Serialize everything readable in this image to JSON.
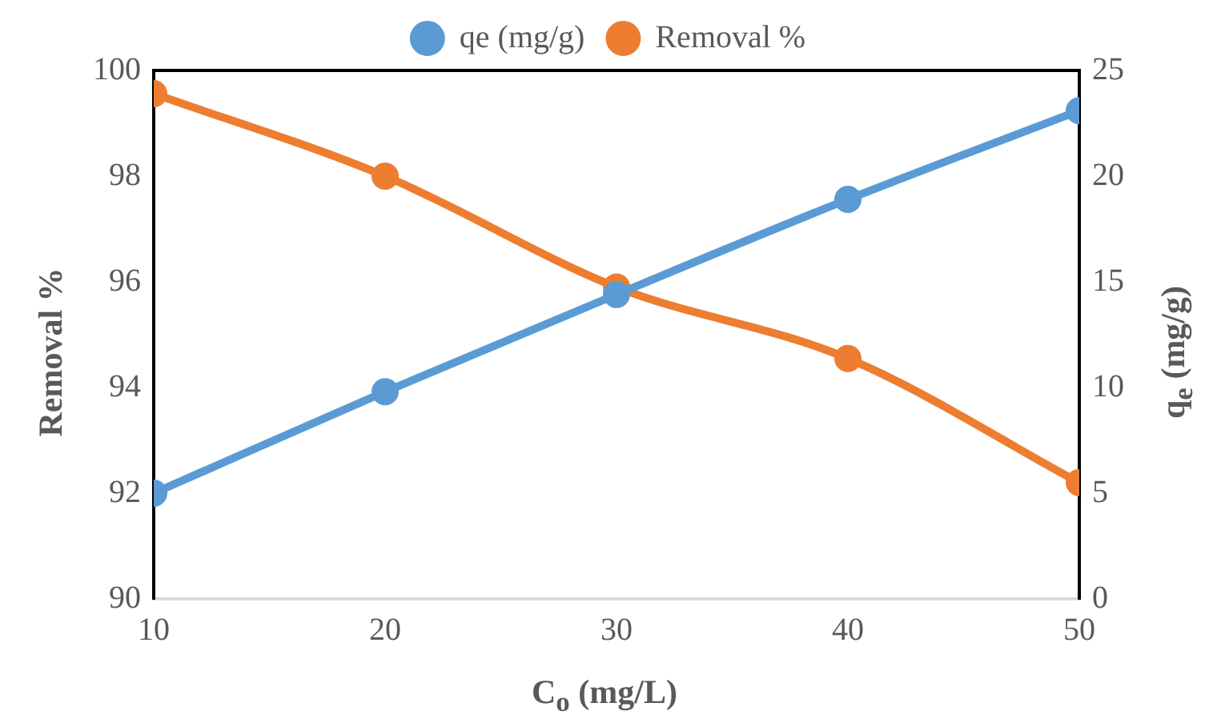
{
  "chart_data": {
    "type": "line",
    "xlabel": "C$_{o}$ (mg/L)",
    "ylabel": "Removal %",
    "y2label": "q$_{e}$ (mg/g)",
    "x": [
      10,
      20,
      30,
      40,
      50
    ],
    "series": [
      {
        "name": "Removal %",
        "color": "#ed7d31",
        "values": [
          99.56,
          98.0,
          95.9,
          94.55,
          92.2
        ]
      },
      {
        "name": "qe (mg/g)",
        "color": "#5b9bd5",
        "values": [
          5.0,
          9.8,
          14.4,
          18.9,
          23.1
        ],
        "axis": "y2"
      }
    ],
    "xlim": [
      10,
      50
    ],
    "xticks": [
      10,
      20,
      30,
      40,
      50
    ],
    "ylim": [
      90,
      100
    ],
    "yticks": [
      90,
      92,
      94,
      96,
      98,
      100
    ],
    "y2lim": [
      0,
      25
    ],
    "y2ticks": [
      0,
      5,
      10,
      15,
      20,
      25
    ],
    "grid": false,
    "legend": "top",
    "marker": "circle",
    "line_style": "solid"
  }
}
